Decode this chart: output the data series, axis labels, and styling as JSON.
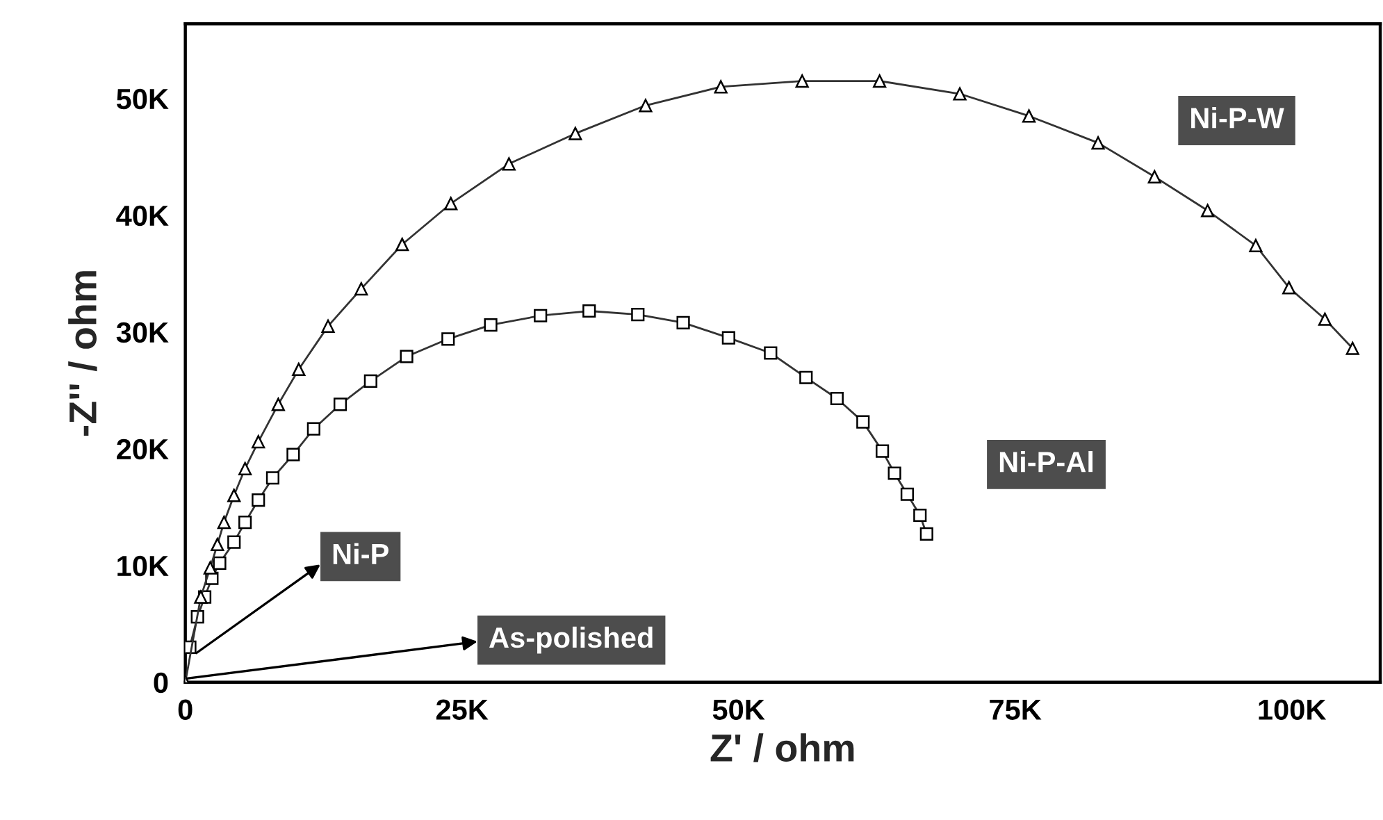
{
  "chart_data": {
    "type": "line",
    "xlabel": "Z' / ohm",
    "ylabel": "-Z'' / ohm",
    "xlim": [
      0,
      108000
    ],
    "ylim": [
      0,
      56400
    ],
    "xticks": [
      0,
      {
        "value": 25000,
        "label": "25K"
      },
      {
        "value": 50000,
        "label": "50K"
      },
      {
        "value": 75000,
        "label": "75K"
      },
      {
        "value": 100000,
        "label": "100K"
      }
    ],
    "yticks": [
      0,
      {
        "value": 10000,
        "label": "10K"
      },
      {
        "value": 20000,
        "label": "20K"
      },
      {
        "value": 30000,
        "label": "30K"
      },
      {
        "value": 40000,
        "label": "40K"
      },
      {
        "value": 50000,
        "label": "50K"
      }
    ],
    "grid": false,
    "legend": false,
    "series": [
      {
        "name": "Ni-P-W",
        "color": "#333333",
        "marker": "triangle",
        "line_style": "solid",
        "x": [
          0,
          1400,
          2250,
          2900,
          3500,
          4400,
          5400,
          6600,
          8400,
          10250,
          12900,
          15900,
          19600,
          24000,
          29250,
          35250,
          41600,
          48400,
          55750,
          62750,
          70000,
          76250,
          82500,
          87600,
          92400,
          96750,
          99750,
          103000,
          105500
        ],
        "values": [
          0,
          7300,
          9800,
          11800,
          13700,
          16000,
          18300,
          20600,
          23800,
          26800,
          30500,
          33700,
          37500,
          41000,
          44400,
          47000,
          49400,
          51000,
          51500,
          51500,
          50400,
          48500,
          46200,
          43300,
          40400,
          37400,
          33800,
          31100,
          28600
        ]
      },
      {
        "name": "Ni-P-Al",
        "color": "#333333",
        "marker": "square",
        "line_style": "solid",
        "x": [
          400,
          1100,
          1750,
          2400,
          3100,
          4400,
          5400,
          6600,
          7900,
          9750,
          11600,
          14000,
          16750,
          20000,
          23750,
          27600,
          32100,
          36500,
          40900,
          45000,
          49100,
          52900,
          56100,
          58900,
          61250,
          63000,
          64100,
          65250,
          66400,
          67000
        ],
        "values": [
          3000,
          5600,
          7300,
          8900,
          10200,
          12000,
          13700,
          15600,
          17500,
          19500,
          21700,
          23800,
          25800,
          27900,
          29400,
          30600,
          31400,
          31800,
          31500,
          30800,
          29500,
          28200,
          26100,
          24300,
          22300,
          19800,
          17900,
          16100,
          14300,
          12700
        ]
      }
    ],
    "annotations": [
      {
        "text": "Ni-P",
        "x": 1000,
        "y": 2500
      },
      {
        "text": "As-polished",
        "x": 0,
        "y": 300
      }
    ]
  }
}
